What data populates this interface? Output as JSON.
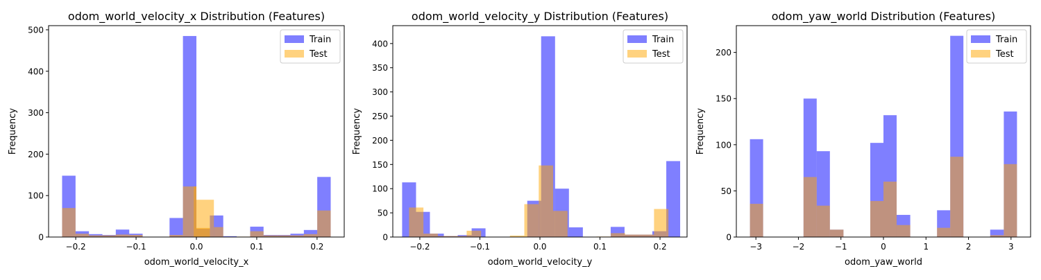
{
  "colors": {
    "train": "#0000ff",
    "test": "#ffa500"
  },
  "chart_data": [
    {
      "type": "histogram",
      "title": "odom_world_velocity_x Distribution (Features)",
      "xlabel": "odom_world_velocity_x",
      "ylabel": "Frequency",
      "xlim": [
        -0.245,
        0.245
      ],
      "ylim": [
        0,
        510
      ],
      "xticks": [
        -0.2,
        -0.1,
        0.0,
        0.1,
        0.2
      ],
      "xtick_labels": [
        "−0.2",
        "−0.1",
        "0.0",
        "0.1",
        "0.2"
      ],
      "yticks": [
        0,
        100,
        200,
        300,
        400,
        500
      ],
      "ytick_labels": [
        "0",
        "100",
        "200",
        "300",
        "400",
        "500"
      ],
      "legend": {
        "position": "top-right",
        "entries": [
          "Train",
          "Test"
        ]
      },
      "series": [
        {
          "name": "Train",
          "color": "#0000ff",
          "alpha": 0.5,
          "bins": [
            [
              -0.2226,
              -0.2003,
              148
            ],
            [
              -0.2003,
              -0.1781,
              14
            ],
            [
              -0.1781,
              -0.1558,
              7
            ],
            [
              -0.1558,
              -0.1336,
              5
            ],
            [
              -0.1336,
              -0.1113,
              18
            ],
            [
              -0.1113,
              -0.0891,
              8
            ],
            [
              -0.0891,
              -0.0668,
              0
            ],
            [
              -0.0668,
              -0.0445,
              0
            ],
            [
              -0.0445,
              -0.0223,
              46
            ],
            [
              -0.0223,
              0.0,
              485
            ],
            [
              0.0,
              0.0223,
              20
            ],
            [
              0.0223,
              0.0445,
              52
            ],
            [
              0.0445,
              0.0668,
              2
            ],
            [
              0.0668,
              0.0891,
              0
            ],
            [
              0.0891,
              0.1113,
              25
            ],
            [
              0.1113,
              0.1336,
              5
            ],
            [
              0.1336,
              0.1558,
              5
            ],
            [
              0.1558,
              0.1781,
              8
            ],
            [
              0.1781,
              0.2003,
              17
            ],
            [
              0.2003,
              0.2226,
              145
            ]
          ]
        },
        {
          "name": "Test",
          "color": "#ffa500",
          "alpha": 0.5,
          "bins": [
            [
              -0.2226,
              -0.2003,
              70
            ],
            [
              -0.2003,
              -0.1781,
              8
            ],
            [
              -0.1781,
              -0.1558,
              4
            ],
            [
              -0.1558,
              -0.1336,
              4
            ],
            [
              -0.1336,
              -0.1113,
              6
            ],
            [
              -0.1113,
              -0.0891,
              5
            ],
            [
              -0.0891,
              -0.0668,
              0
            ],
            [
              -0.0668,
              -0.0445,
              0
            ],
            [
              -0.0445,
              -0.0223,
              5
            ],
            [
              -0.0223,
              0.0,
              122
            ],
            [
              -0.0044,
              0.0,
              122
            ],
            [
              0.0,
              0.0223,
              22
            ],
            [
              0.0,
              0.029,
              90
            ],
            [
              0.029,
              0.0445,
              24
            ],
            [
              0.0445,
              0.0668,
              0
            ],
            [
              0.0668,
              0.0891,
              1
            ],
            [
              0.0891,
              0.1113,
              14
            ],
            [
              0.1113,
              0.1336,
              4
            ],
            [
              0.1336,
              0.1558,
              4
            ],
            [
              0.1558,
              0.1781,
              4
            ],
            [
              0.1781,
              0.2003,
              7
            ],
            [
              0.2003,
              0.2226,
              64
            ]
          ]
        }
      ]
    },
    {
      "type": "histogram",
      "title": "odom_world_velocity_y Distribution (Features)",
      "xlabel": "odom_world_velocity_y",
      "ylabel": "Frequency",
      "xlim": [
        -0.245,
        0.245
      ],
      "ylim": [
        0,
        437
      ],
      "xticks": [
        -0.2,
        -0.1,
        0.0,
        0.1,
        0.2
      ],
      "xtick_labels": [
        "−0.2",
        "−0.1",
        "0.0",
        "0.1",
        "0.2"
      ],
      "yticks": [
        0,
        50,
        100,
        150,
        200,
        250,
        300,
        350,
        400
      ],
      "ytick_labels": [
        "0",
        "50",
        "100",
        "150",
        "200",
        "250",
        "300",
        "350",
        "400"
      ],
      "legend": {
        "position": "top-right",
        "entries": [
          "Train",
          "Test"
        ]
      },
      "series": [
        {
          "name": "Train",
          "color": "#0000ff",
          "alpha": 0.5,
          "bins": [
            [
              -0.2295,
              -0.2063,
              113
            ],
            [
              -0.2063,
              -0.1832,
              52
            ],
            [
              -0.1832,
              -0.16,
              7
            ],
            [
              -0.16,
              -0.1369,
              2
            ],
            [
              -0.1369,
              -0.1137,
              4
            ],
            [
              -0.1137,
              -0.0906,
              18
            ],
            [
              -0.0906,
              -0.0674,
              0
            ],
            [
              -0.0674,
              -0.0443,
              0
            ],
            [
              -0.0443,
              -0.0211,
              0
            ],
            [
              -0.0211,
              0.002,
              75
            ],
            [
              0.002,
              0.0252,
              415
            ],
            [
              0.0252,
              0.0483,
              100
            ],
            [
              0.0483,
              0.0715,
              20
            ],
            [
              0.0715,
              0.0946,
              0
            ],
            [
              0.0946,
              0.1178,
              0
            ],
            [
              0.1178,
              0.1409,
              21
            ],
            [
              0.1409,
              0.1641,
              5
            ],
            [
              0.1641,
              0.1872,
              5
            ],
            [
              0.1872,
              0.2104,
              12
            ],
            [
              0.2104,
              0.2335,
              157
            ]
          ]
        },
        {
          "name": "Test",
          "color": "#ffa500",
          "alpha": 0.5,
          "bins": [
            [
              -0.218,
              -0.194,
              61
            ],
            [
              -0.194,
              -0.17,
              7
            ],
            [
              -0.17,
              -0.146,
              2
            ],
            [
              -0.146,
              -0.122,
              2
            ],
            [
              -0.122,
              -0.098,
              13
            ],
            [
              -0.098,
              -0.074,
              0
            ],
            [
              -0.074,
              -0.05,
              0
            ],
            [
              -0.05,
              -0.026,
              3
            ],
            [
              -0.026,
              -0.002,
              68
            ],
            [
              -0.002,
              0.022,
              148
            ],
            [
              0.022,
              0.046,
              54
            ],
            [
              0.046,
              0.07,
              0
            ],
            [
              0.07,
              0.094,
              0
            ],
            [
              0.094,
              0.118,
              1
            ],
            [
              0.118,
              0.142,
              8
            ],
            [
              0.142,
              0.166,
              5
            ],
            [
              0.166,
              0.19,
              5
            ],
            [
              0.19,
              0.214,
              58
            ]
          ]
        }
      ]
    },
    {
      "type": "histogram",
      "title": "odom_yaw_world Distribution (Features)",
      "xlabel": "odom_yaw_world",
      "ylabel": "Frequency",
      "xlim": [
        -3.46,
        3.46
      ],
      "ylim": [
        0,
        229
      ],
      "xticks": [
        -3,
        -2,
        -1,
        0,
        1,
        2,
        3
      ],
      "xtick_labels": [
        "−3",
        "−2",
        "−1",
        "0",
        "1",
        "2",
        "3"
      ],
      "yticks": [
        0,
        50,
        100,
        150,
        200
      ],
      "ytick_labels": [
        "0",
        "50",
        "100",
        "150",
        "200"
      ],
      "legend": {
        "position": "top-right",
        "entries": [
          "Train",
          "Test"
        ]
      },
      "series": [
        {
          "name": "Train",
          "color": "#0000ff",
          "alpha": 0.5,
          "bins": [
            [
              -3.14,
              -2.83,
              106
            ],
            [
              -2.83,
              -2.51,
              0
            ],
            [
              -2.51,
              -2.2,
              0
            ],
            [
              -2.2,
              -1.88,
              0
            ],
            [
              -1.88,
              -1.57,
              150
            ],
            [
              -1.57,
              -1.26,
              93
            ],
            [
              -1.26,
              -0.94,
              8
            ],
            [
              -0.94,
              -0.63,
              0
            ],
            [
              -0.63,
              -0.31,
              0
            ],
            [
              -0.31,
              0.0,
              102
            ],
            [
              0.0,
              0.31,
              132
            ],
            [
              0.31,
              0.63,
              24
            ],
            [
              0.63,
              0.94,
              0
            ],
            [
              0.94,
              1.26,
              0
            ],
            [
              1.26,
              1.57,
              29
            ],
            [
              1.57,
              1.88,
              218
            ],
            [
              1.88,
              2.2,
              0
            ],
            [
              2.2,
              2.51,
              0
            ],
            [
              2.51,
              2.83,
              8
            ],
            [
              2.83,
              3.14,
              136
            ]
          ]
        },
        {
          "name": "Test",
          "color": "#ffa500",
          "alpha": 0.5,
          "bins": [
            [
              -3.14,
              -2.83,
              36
            ],
            [
              -2.83,
              -2.51,
              0
            ],
            [
              -2.51,
              -2.2,
              0
            ],
            [
              -2.2,
              -1.88,
              0
            ],
            [
              -1.88,
              -1.57,
              65
            ],
            [
              -1.57,
              -1.26,
              34
            ],
            [
              -1.26,
              -0.94,
              8
            ],
            [
              -0.94,
              -0.63,
              0
            ],
            [
              -0.63,
              -0.31,
              0
            ],
            [
              -0.31,
              0.0,
              39
            ],
            [
              0.0,
              0.31,
              60
            ],
            [
              0.31,
              0.63,
              13
            ],
            [
              0.63,
              0.94,
              0
            ],
            [
              0.94,
              1.26,
              0
            ],
            [
              1.26,
              1.57,
              10
            ],
            [
              1.57,
              1.88,
              87
            ],
            [
              1.88,
              2.2,
              0
            ],
            [
              2.2,
              2.51,
              0
            ],
            [
              2.51,
              2.83,
              2
            ],
            [
              2.83,
              3.14,
              79
            ]
          ]
        }
      ]
    }
  ]
}
